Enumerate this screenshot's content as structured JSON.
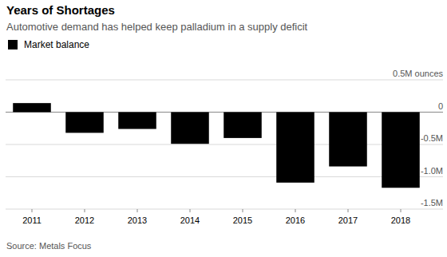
{
  "chart_data": {
    "type": "bar",
    "title": "Years of Shortages",
    "subtitle": "Automotive demand has helped keep palladium in a supply deficit",
    "categories": [
      "2011",
      "2012",
      "2013",
      "2014",
      "2015",
      "2016",
      "2017",
      "2018"
    ],
    "series": [
      {
        "name": "Market balance",
        "color": "#000000",
        "values": [
          0.14,
          -0.32,
          -0.26,
          -0.49,
          -0.4,
          -1.09,
          -0.84,
          -1.17
        ]
      }
    ],
    "ylim": [
      -1.5,
      0.5
    ],
    "yticks": [
      {
        "value": 0.5,
        "label": "0.5M ounces"
      },
      0,
      {
        "value": -0.5,
        "label": "-0.5M"
      },
      {
        "value": -1,
        "label": "-1.0M"
      },
      {
        "value": -1.5,
        "label": "-1.5M"
      }
    ],
    "grid": true,
    "legend": "top-left",
    "source": "Source: Metals Focus"
  }
}
